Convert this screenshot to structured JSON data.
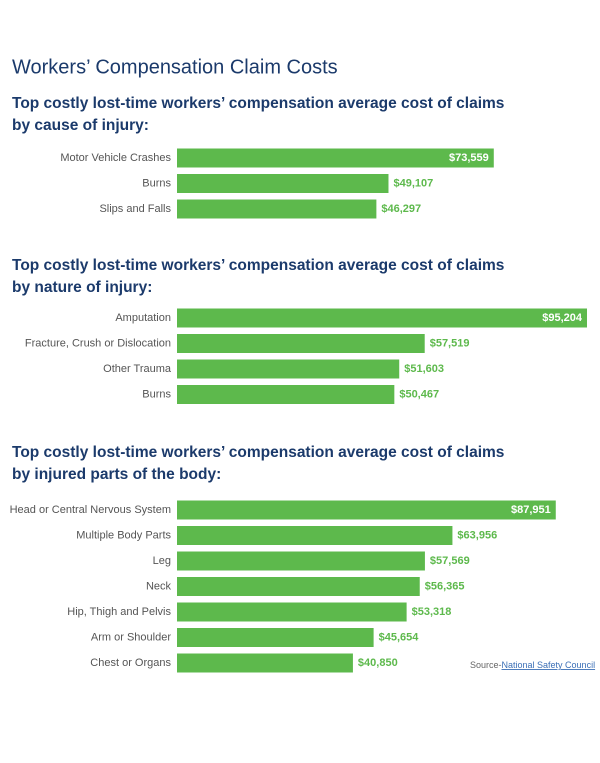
{
  "title": "Workers’ Compensation Claim Costs",
  "source": {
    "prefix": "Source-",
    "link": "National Safety Council"
  },
  "chart_data": [
    {
      "type": "bar",
      "orientation": "horizontal",
      "color": "#5db94c",
      "title": [
        "Top costly lost-time workers’ compensation average cost of claims",
        "by cause of injury:"
      ],
      "categories": [
        "Motor Vehicle Crashes",
        "Burns",
        "Slips and Falls"
      ],
      "values": [
        73559,
        49107,
        46297
      ],
      "value_labels": [
        "$73,559",
        "$49,107",
        "$46,297"
      ]
    },
    {
      "type": "bar",
      "orientation": "horizontal",
      "color": "#5db94c",
      "title": [
        "Top costly lost-time workers’ compensation average cost of claims",
        "by nature of injury:"
      ],
      "categories": [
        "Amputation",
        "Fracture, Crush or Dislocation",
        "Other Trauma",
        "Burns"
      ],
      "values": [
        95204,
        57519,
        51603,
        50467
      ],
      "value_labels": [
        "$95,204",
        "$57,519",
        "$51,603",
        "$50,467"
      ]
    },
    {
      "type": "bar",
      "orientation": "horizontal",
      "color": "#5db94c",
      "title": [
        "Top costly lost-time workers’ compensation average cost of claims",
        "by injured parts of the body:"
      ],
      "categories": [
        "Head or Central Nervous System",
        "Multiple Body Parts",
        "Leg",
        "Neck",
        "Hip, Thigh and Pelvis",
        "Arm or Shoulder",
        "Chest or Organs"
      ],
      "values": [
        87951,
        63956,
        57569,
        56365,
        53318,
        45654,
        40850
      ],
      "value_labels": [
        "$87,951",
        "$63,956",
        "$57,569",
        "$56,365",
        "$53,318",
        "$45,654",
        "$40,850"
      ]
    }
  ]
}
